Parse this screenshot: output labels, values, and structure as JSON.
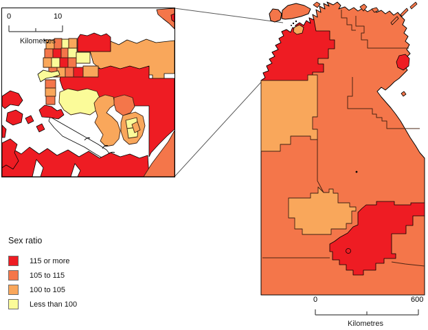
{
  "legend": {
    "title": "Sex ratio",
    "items": [
      {
        "label": "115 or more",
        "color": "#EE1C23"
      },
      {
        "label": "105 to 115",
        "color": "#F4764A"
      },
      {
        "label": "100 to 105",
        "color": "#F9A75B"
      },
      {
        "label": "Less than 100",
        "color": "#FBFB99"
      }
    ]
  },
  "inset_scalebar": {
    "start": "0",
    "end": "10",
    "unit": "Kilometres"
  },
  "main_scalebar": {
    "start": "0",
    "end": "600",
    "unit": "Kilometres"
  }
}
